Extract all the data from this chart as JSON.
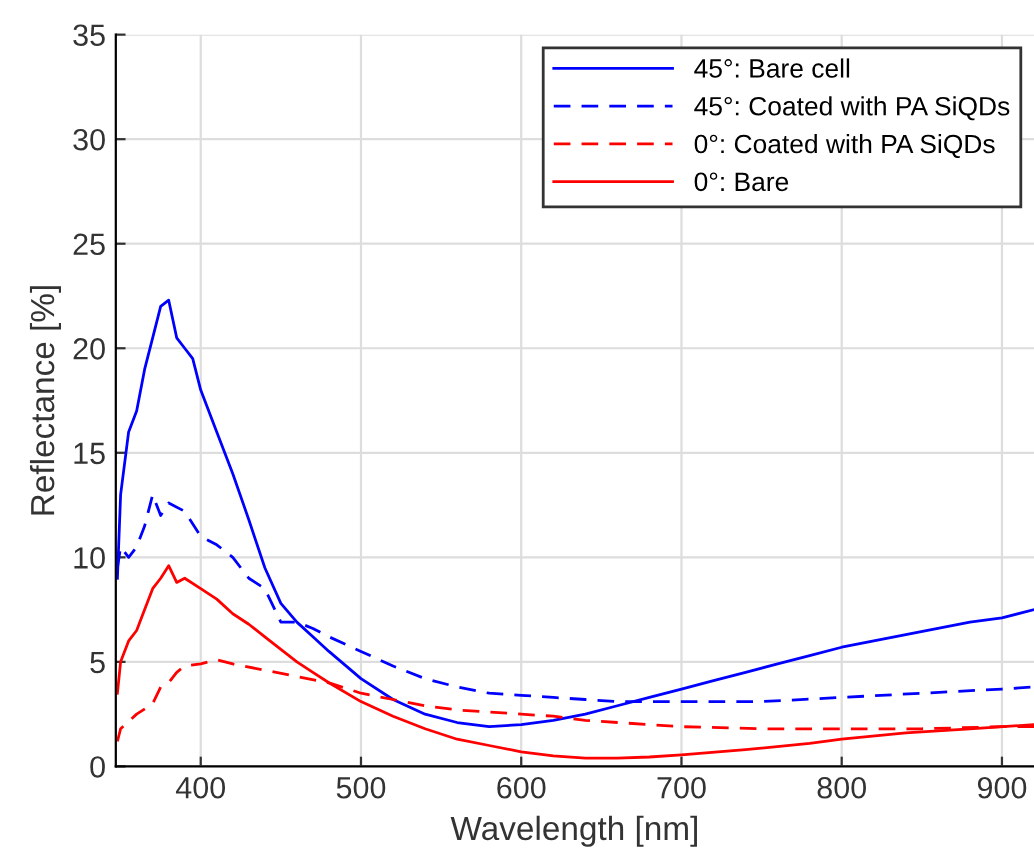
{
  "chart_data": {
    "type": "line",
    "xlabel": "Wavelength [nm]",
    "ylabel": "Reflectance [%]",
    "xlim": [
      347,
      920
    ],
    "ylim": [
      0,
      35
    ],
    "xticks": [
      400,
      500,
      600,
      700,
      800,
      900
    ],
    "yticks": [
      0,
      5,
      10,
      15,
      20,
      25,
      30,
      35
    ],
    "grid": true,
    "legend": "top right",
    "series": [
      {
        "name": "45°: Bare cell",
        "color": "#0000ff",
        "line_style": "solid",
        "x": [
          348,
          350,
          355,
          360,
          365,
          370,
          375,
          380,
          385,
          390,
          395,
          400,
          410,
          420,
          430,
          440,
          450,
          460,
          470,
          480,
          500,
          520,
          540,
          560,
          580,
          600,
          620,
          640,
          660,
          680,
          700,
          720,
          740,
          760,
          780,
          800,
          820,
          840,
          860,
          880,
          900,
          920
        ],
        "values": [
          9,
          13,
          16,
          17,
          19,
          20.5,
          22,
          22.3,
          20.5,
          20,
          19.5,
          18,
          16,
          14,
          11.8,
          9.5,
          7.8,
          6.9,
          6.2,
          5.5,
          4.2,
          3.2,
          2.5,
          2.1,
          1.9,
          2.0,
          2.2,
          2.5,
          2.9,
          3.3,
          3.7,
          4.1,
          4.5,
          4.9,
          5.3,
          5.7,
          6.0,
          6.3,
          6.6,
          6.9,
          7.1,
          7.5
        ]
      },
      {
        "name": "45°: Coated with PA SiQDs",
        "color": "#0000ff",
        "line_style": "dashed",
        "x": [
          348,
          350,
          355,
          360,
          365,
          370,
          375,
          380,
          390,
          400,
          410,
          420,
          430,
          440,
          450,
          460,
          470,
          480,
          500,
          520,
          540,
          560,
          580,
          600,
          620,
          640,
          660,
          680,
          700,
          750,
          800,
          850,
          900,
          920
        ],
        "values": [
          9.5,
          10.5,
          10,
          10.5,
          11.5,
          13,
          12,
          12.6,
          12.2,
          11,
          10.6,
          10,
          9,
          8.5,
          6.9,
          6.9,
          6.6,
          6.2,
          5.5,
          4.8,
          4.2,
          3.8,
          3.5,
          3.4,
          3.3,
          3.2,
          3.1,
          3.1,
          3.1,
          3.1,
          3.3,
          3.5,
          3.7,
          3.8
        ]
      },
      {
        "name": "0°: Coated with PA SiQDs",
        "color": "#ff0000",
        "line_style": "dashed",
        "x": [
          348,
          350,
          360,
          370,
          375,
          380,
          385,
          390,
          400,
          410,
          420,
          440,
          460,
          480,
          500,
          520,
          540,
          560,
          580,
          600,
          620,
          640,
          660,
          700,
          750,
          800,
          850,
          900,
          920
        ],
        "values": [
          1.2,
          1.8,
          2.5,
          3,
          3.8,
          4,
          4.5,
          4.8,
          4.9,
          5.1,
          4.9,
          4.6,
          4.3,
          4.0,
          3.5,
          3.2,
          2.9,
          2.7,
          2.6,
          2.5,
          2.4,
          2.2,
          2.1,
          1.9,
          1.8,
          1.8,
          1.8,
          1.9,
          1.9
        ]
      },
      {
        "name": "0°: Bare",
        "color": "#ff0000",
        "line_style": "solid",
        "x": [
          348,
          350,
          355,
          360,
          365,
          370,
          375,
          380,
          385,
          390,
          400,
          410,
          420,
          430,
          440,
          450,
          460,
          470,
          480,
          500,
          520,
          540,
          560,
          580,
          600,
          620,
          640,
          660,
          680,
          700,
          740,
          780,
          800,
          840,
          880,
          920
        ],
        "values": [
          3.5,
          5,
          6,
          6.5,
          7.5,
          8.5,
          9,
          9.6,
          8.8,
          9,
          8.5,
          8.0,
          7.3,
          6.8,
          6.2,
          5.6,
          5,
          4.5,
          4.0,
          3.1,
          2.4,
          1.8,
          1.3,
          1.0,
          0.7,
          0.5,
          0.4,
          0.4,
          0.45,
          0.55,
          0.8,
          1.1,
          1.3,
          1.6,
          1.8,
          2.0
        ]
      }
    ]
  }
}
